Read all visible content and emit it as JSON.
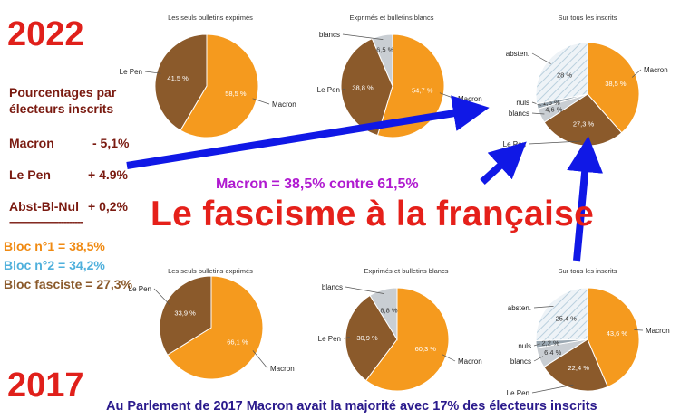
{
  "colors": {
    "macron": "#f59a1e",
    "lepen": "#8b5a2b",
    "blancs": "#c9ced3",
    "absten": "#eef3f6",
    "arrow": "#1018e6",
    "title_red": "#e5201a",
    "bloc1": "#f08a12",
    "bloc2": "#4fb0dc",
    "bloc3": "#8b5a2b"
  },
  "overlay": {
    "year_top": "2022",
    "year_bottom": "2017",
    "headline": "Le fascisme à la française",
    "versus": "Macron = 38,5% contre  61,5%",
    "footer": "Au Parlement de 2017 Macron avait la majorité avec 17% des électeurs inscrits"
  },
  "side_panel": {
    "heading_line1": "Pourcentages par",
    "heading_line2": "électeurs inscrits",
    "rows": [
      {
        "name": "Macron",
        "change": "- 5,1%"
      },
      {
        "name": "Le Pen",
        "change": "+ 4.9%"
      },
      {
        "name": "Abst-Bl-Nul",
        "change": "+ 0,2%"
      }
    ],
    "separator": "---------------------------",
    "blocs": [
      "Bloc n°1 = 38,5%",
      "Bloc n°2 = 34,2%",
      "Bloc fasciste = 27,3%"
    ]
  },
  "chart_data": [
    {
      "type": "pie",
      "year": "2022",
      "title": "Les seuls bulletins exprimés",
      "slices": [
        {
          "label": "Macron",
          "value": 58.5,
          "value_label": "58,5 %"
        },
        {
          "label": "Le Pen",
          "value": 41.5,
          "value_label": "41,5 %"
        }
      ]
    },
    {
      "type": "pie",
      "year": "2022",
      "title": "Exprimés et bulletins blancs",
      "slices": [
        {
          "label": "Macron",
          "value": 54.7,
          "value_label": "54,7 %"
        },
        {
          "label": "Le Pen",
          "value": 38.8,
          "value_label": "38,8 %"
        },
        {
          "label": "blancs",
          "value": 6.5,
          "value_label": "6,5 %"
        }
      ]
    },
    {
      "type": "pie",
      "year": "2022",
      "title": "Sur tous les inscrits",
      "slices": [
        {
          "label": "Macron",
          "value": 38.5,
          "value_label": "38,5 %"
        },
        {
          "label": "Le Pen",
          "value": 27.3,
          "value_label": "27,3 %"
        },
        {
          "label": "blancs",
          "value": 4.6,
          "value_label": "4,6 %"
        },
        {
          "label": "nuls",
          "value": 1.6,
          "value_label": "1,6 %"
        },
        {
          "label": "absten.",
          "value": 28,
          "value_label": "28 %"
        }
      ]
    },
    {
      "type": "pie",
      "year": "2017",
      "title": "Les seuls bulletins exprimés",
      "slices": [
        {
          "label": "Macron",
          "value": 66.1,
          "value_label": "66,1 %"
        },
        {
          "label": "Le Pen",
          "value": 33.9,
          "value_label": "33,9 %"
        }
      ]
    },
    {
      "type": "pie",
      "year": "2017",
      "title": "Exprimés et bulletins blancs",
      "slices": [
        {
          "label": "Macron",
          "value": 60.3,
          "value_label": "60,3 %"
        },
        {
          "label": "Le Pen",
          "value": 30.9,
          "value_label": "30,9 %"
        },
        {
          "label": "blancs",
          "value": 8.8,
          "value_label": "8,8 %"
        }
      ]
    },
    {
      "type": "pie",
      "year": "2017",
      "title": "Sur tous les inscrits",
      "slices": [
        {
          "label": "Macron",
          "value": 43.6,
          "value_label": "43,6 %"
        },
        {
          "label": "Le Pen",
          "value": 22.4,
          "value_label": "22,4 %"
        },
        {
          "label": "blancs",
          "value": 6.4,
          "value_label": "6,4 %"
        },
        {
          "label": "nuls",
          "value": 2.2,
          "value_label": "2,2 %"
        },
        {
          "label": "absten.",
          "value": 25.4,
          "value_label": "25,4 %"
        }
      ]
    }
  ]
}
